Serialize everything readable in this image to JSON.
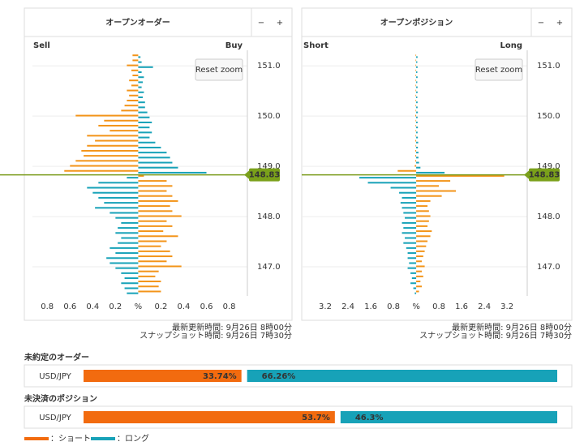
{
  "chart_data": [
    {
      "type": "butterfly",
      "title": "オープンオーダー",
      "zoom_buttons": [
        "−",
        "+"
      ],
      "left_label": "Sell",
      "right_label": "Buy",
      "reset_button": "Reset zoom",
      "xlim": [
        -0.93,
        0.96
      ],
      "xticks": [
        {
          "value": -0.8,
          "label": "0.8"
        },
        {
          "value": -0.6,
          "label": "0.6"
        },
        {
          "value": -0.4,
          "label": "0.4"
        },
        {
          "value": -0.2,
          "label": "0.2"
        },
        {
          "value": 0,
          "label": "%"
        },
        0.2,
        0.4,
        0.6,
        0.8
      ],
      "ylim": [
        146.42,
        151.31
      ],
      "yticks": [
        {
          "value": 147,
          "label": "147.0"
        },
        {
          "value": 148,
          "label": "148.0"
        },
        {
          "value": 149,
          "label": "149.0"
        },
        {
          "value": 150,
          "label": "150.0"
        },
        {
          "value": 151,
          "label": "151.0"
        }
      ],
      "current": 148.83,
      "levels": [
        151.2,
        151.1,
        151.0,
        150.9,
        150.8,
        150.7,
        150.6,
        150.5,
        150.4,
        150.3,
        150.2,
        150.1,
        150.0,
        149.9,
        149.8,
        149.7,
        149.6,
        149.5,
        149.4,
        149.3,
        149.2,
        149.1,
        149.0,
        148.9,
        148.8,
        148.7,
        148.6,
        148.5,
        148.4,
        148.3,
        148.2,
        148.1,
        148.0,
        147.9,
        147.8,
        147.7,
        147.6,
        147.5,
        147.4,
        147.3,
        147.2,
        147.1,
        147.0,
        146.9,
        146.8,
        146.7,
        146.6,
        146.5
      ],
      "series": [
        {
          "color": "#f39419",
          "values": [
            -0.05,
            -0.05,
            -0.1,
            -0.06,
            -0.05,
            -0.08,
            -0.06,
            -0.1,
            -0.08,
            -0.1,
            -0.12,
            -0.15,
            -0.55,
            -0.3,
            -0.35,
            -0.25,
            -0.45,
            -0.38,
            -0.45,
            -0.5,
            -0.48,
            -0.55,
            -0.6,
            -0.65,
            0.05,
            0.25,
            0.3,
            0.25,
            0.3,
            0.35,
            0.28,
            0.3,
            0.38,
            0.25,
            0.3,
            0.22,
            0.35,
            0.25,
            0.2,
            0.28,
            0.3,
            0.25,
            0.38,
            0.18,
            0.15,
            0.2,
            0.18,
            0.2
          ]
        },
        {
          "color": "#17a2b8",
          "values": [
            0.02,
            0.03,
            0.13,
            0.03,
            0.05,
            0.04,
            0.03,
            0.05,
            0.04,
            0.06,
            0.06,
            0.08,
            0.1,
            0.12,
            0.1,
            0.12,
            0.1,
            0.15,
            0.2,
            0.25,
            0.28,
            0.3,
            0.35,
            0.6,
            -0.1,
            -0.35,
            -0.45,
            -0.4,
            -0.35,
            -0.3,
            -0.38,
            -0.25,
            -0.2,
            -0.15,
            -0.18,
            -0.2,
            -0.15,
            -0.18,
            -0.25,
            -0.2,
            -0.28,
            -0.25,
            -0.2,
            -0.15,
            -0.12,
            -0.15,
            -0.12,
            -0.1
          ]
        }
      ],
      "timestamps": [
        "最新更新時間: 9月26日 8時00分",
        "スナップショット時間: 9月26日 7時30分"
      ]
    },
    {
      "type": "butterfly",
      "title": "オープンポジション",
      "zoom_buttons": [
        "−",
        "+"
      ],
      "left_label": "Short",
      "right_label": "Long",
      "reset_button": "Reset zoom",
      "xlim": [
        -4.0,
        3.91
      ],
      "xticks": [
        {
          "value": -3.2,
          "label": "3.2"
        },
        {
          "value": -2.4,
          "label": "2.4"
        },
        {
          "value": -1.6,
          "label": "1.6"
        },
        {
          "value": -0.8,
          "label": "0.8"
        },
        {
          "value": 0,
          "label": "%"
        },
        0.8,
        1.6,
        2.4,
        3.2
      ],
      "ylim": [
        146.42,
        151.31
      ],
      "yticks": [
        {
          "value": 147,
          "label": "147.0"
        },
        {
          "value": 148,
          "label": "148.0"
        },
        {
          "value": 149,
          "label": "149.0"
        },
        {
          "value": 150,
          "label": "150.0"
        },
        {
          "value": 151,
          "label": "151.0"
        }
      ],
      "current": 148.83,
      "levels": [
        151.2,
        151.1,
        151.0,
        150.9,
        150.8,
        150.7,
        150.6,
        150.5,
        150.4,
        150.3,
        150.2,
        150.1,
        150.0,
        149.9,
        149.8,
        149.7,
        149.6,
        149.5,
        149.4,
        149.3,
        149.2,
        149.1,
        149.0,
        148.9,
        148.8,
        148.7,
        148.6,
        148.5,
        148.4,
        148.3,
        148.2,
        148.1,
        148.0,
        147.9,
        147.8,
        147.7,
        147.6,
        147.5,
        147.4,
        147.3,
        147.2,
        147.1,
        147.0,
        146.9,
        146.8,
        146.7,
        146.6,
        146.5
      ],
      "series": [
        {
          "color": "#f39419",
          "values": [
            -0.02,
            -0.02,
            -0.02,
            -0.02,
            -0.02,
            -0.02,
            -0.02,
            -0.02,
            -0.02,
            -0.02,
            -0.02,
            -0.02,
            -0.03,
            -0.02,
            -0.02,
            -0.02,
            -0.02,
            -0.03,
            -0.02,
            -0.03,
            -0.03,
            -0.03,
            -0.05,
            -0.65,
            3.1,
            1.2,
            0.8,
            1.4,
            0.9,
            0.5,
            0.4,
            0.45,
            0.5,
            0.45,
            0.4,
            0.55,
            0.5,
            0.4,
            0.35,
            0.3,
            0.25,
            0.2,
            0.3,
            0.2,
            0.25,
            0.15,
            0.2,
            0.1
          ]
        },
        {
          "color": "#17a2b8",
          "values": [
            0.05,
            0.04,
            0.05,
            0.04,
            0.05,
            0.04,
            0.05,
            0.05,
            0.04,
            0.05,
            0.05,
            0.06,
            0.05,
            0.05,
            0.06,
            0.05,
            0.06,
            0.07,
            0.06,
            0.08,
            0.08,
            0.1,
            0.15,
            1.0,
            -2.0,
            -1.7,
            -0.9,
            -0.6,
            -0.5,
            -0.55,
            -0.5,
            -0.45,
            -0.4,
            -0.5,
            -0.45,
            -0.5,
            -0.4,
            -0.45,
            -0.35,
            -0.3,
            -0.3,
            -0.25,
            -0.3,
            -0.2,
            -0.15,
            -0.2,
            -0.1,
            -0.05
          ]
        }
      ],
      "timestamps": [
        "最新更新時間: 9月26日 8時00分",
        "スナップショット時間: 9月26日 7時30分"
      ]
    }
  ],
  "summary": [
    {
      "title": "未約定のオーダー",
      "pair": "USD/JPY",
      "values": [
        33.74,
        66.26
      ],
      "value_labels": [
        "33.74%",
        "66.26%"
      ]
    },
    {
      "title": "未決済のポジション",
      "pair": "USD/JPY",
      "values": [
        53.7,
        46.3
      ],
      "value_labels": [
        "53.7%",
        "46.3%"
      ]
    }
  ],
  "legend": [
    {
      "name": "：ショート",
      "color": "#f26b0f"
    },
    {
      "name": "：ロング",
      "color": "#17a2b8"
    }
  ]
}
